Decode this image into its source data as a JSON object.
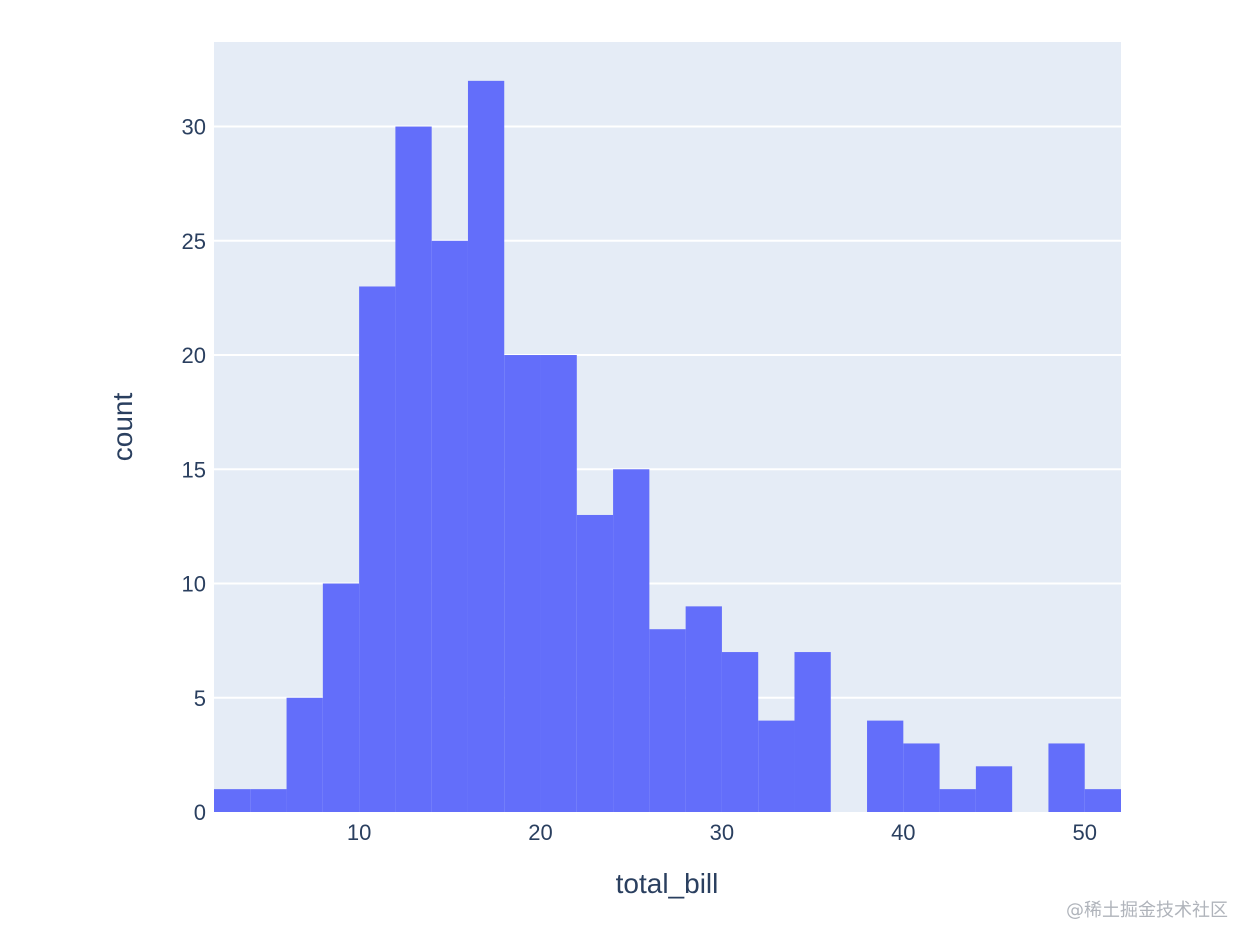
{
  "chart_data": {
    "type": "bar",
    "subtype": "histogram",
    "xlabel": "total_bill",
    "ylabel": "count",
    "xlim": [
      2,
      52
    ],
    "ylim": [
      0,
      33.7
    ],
    "x_ticks": [
      10,
      20,
      30,
      40,
      50
    ],
    "y_ticks": [
      0,
      5,
      10,
      15,
      20,
      25,
      30
    ],
    "bin_width": 2,
    "bins": [
      {
        "start": 2,
        "end": 4,
        "count": 1
      },
      {
        "start": 4,
        "end": 6,
        "count": 1
      },
      {
        "start": 6,
        "end": 8,
        "count": 5
      },
      {
        "start": 8,
        "end": 10,
        "count": 10
      },
      {
        "start": 10,
        "end": 12,
        "count": 23
      },
      {
        "start": 12,
        "end": 14,
        "count": 30
      },
      {
        "start": 14,
        "end": 16,
        "count": 25
      },
      {
        "start": 16,
        "end": 18,
        "count": 32
      },
      {
        "start": 18,
        "end": 20,
        "count": 20
      },
      {
        "start": 20,
        "end": 22,
        "count": 20
      },
      {
        "start": 22,
        "end": 24,
        "count": 13
      },
      {
        "start": 24,
        "end": 26,
        "count": 15
      },
      {
        "start": 26,
        "end": 28,
        "count": 8
      },
      {
        "start": 28,
        "end": 30,
        "count": 9
      },
      {
        "start": 30,
        "end": 32,
        "count": 7
      },
      {
        "start": 32,
        "end": 34,
        "count": 4
      },
      {
        "start": 34,
        "end": 36,
        "count": 7
      },
      {
        "start": 36,
        "end": 38,
        "count": 0
      },
      {
        "start": 38,
        "end": 40,
        "count": 4
      },
      {
        "start": 40,
        "end": 42,
        "count": 3
      },
      {
        "start": 42,
        "end": 44,
        "count": 1
      },
      {
        "start": 44,
        "end": 46,
        "count": 2
      },
      {
        "start": 46,
        "end": 48,
        "count": 0
      },
      {
        "start": 48,
        "end": 50,
        "count": 3
      },
      {
        "start": 50,
        "end": 52,
        "count": 1
      }
    ],
    "grid": true,
    "legend": "none",
    "colors": {
      "bar": "#636efa",
      "plot_bg": "#e5ecf6",
      "grid": "#ffffff",
      "text": "#2a3f5f"
    }
  },
  "watermark": "@稀土掘金技术社区"
}
